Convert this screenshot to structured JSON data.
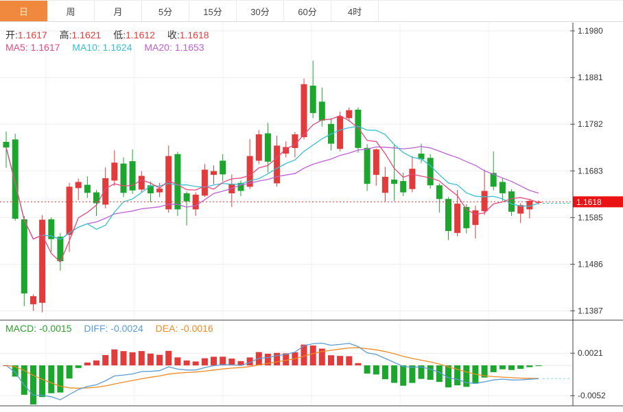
{
  "tabs": [
    {
      "label": "日",
      "active": true
    },
    {
      "label": "周",
      "active": false
    },
    {
      "label": "月",
      "active": false
    },
    {
      "label": "5分",
      "active": false
    },
    {
      "label": "15分",
      "active": false
    },
    {
      "label": "30分",
      "active": false
    },
    {
      "label": "60分",
      "active": false
    },
    {
      "label": "4时",
      "active": false
    }
  ],
  "main_legend": {
    "open_label": "开:",
    "open_value": "1.1617",
    "high_label": "高:",
    "high_value": "1.1621",
    "low_label": "低:",
    "low_value": "1.1612",
    "close_label": "收:",
    "close_value": "1.1618"
  },
  "ma_legend": {
    "ma5_label": "MA5:",
    "ma5_value": "1.1617",
    "ma10_label": "MA10:",
    "ma10_value": "1.1624",
    "ma20_label": "MA20:",
    "ma20_value": "1.1653"
  },
  "macd_legend": {
    "macd_label": "MACD:",
    "macd_value": "-0.0015",
    "diff_label": "DIFF:",
    "diff_value": "-0.0024",
    "dea_label": "DEA:",
    "dea_value": "-0.0016"
  },
  "colors": {
    "accent_orange": "#f0883d",
    "active_tab_text": "#ffeac6",
    "up_red": "#e23b3b",
    "down_green": "#1ca62e",
    "ma5_pink": "#e8487c",
    "ma10_cyan": "#35c0d2",
    "ma20_purple": "#bb60d5",
    "diff_blue": "#5b9bd5",
    "dea_orange": "#ee8a22",
    "macd_green": "#2ba12b",
    "price_line_red": "#f03030",
    "badge_red": "#ea1212",
    "label_dark": "#333333"
  },
  "chart_data": {
    "type": "candlestick",
    "title": "",
    "grid": true,
    "legend_position": "top-left",
    "price_axis": {
      "ticks": [
        "1.1980",
        "1.1881",
        "1.1782",
        "1.1683",
        "1.1585",
        "1.1486",
        "1.1387"
      ],
      "current": "1.1618"
    },
    "macd_axis": {
      "ticks": [
        "0.0021",
        "-0.0052"
      ]
    },
    "ma_periods": [
      5,
      10,
      20
    ],
    "macd_params": [
      12,
      26,
      9
    ],
    "candles": [
      [
        1.1745,
        1.1767,
        1.169,
        1.1733
      ],
      [
        1.175,
        1.1762,
        1.1578,
        1.1582
      ],
      [
        1.1581,
        1.1588,
        1.1397,
        1.1424
      ],
      [
        1.1401,
        1.1422,
        1.1387,
        1.1418
      ],
      [
        1.1404,
        1.159,
        1.1384,
        1.158
      ],
      [
        1.1581,
        1.1585,
        1.1512,
        1.1539
      ],
      [
        1.1544,
        1.1552,
        1.1472,
        1.1492
      ],
      [
        1.1548,
        1.1658,
        1.1512,
        1.165
      ],
      [
        1.1647,
        1.1667,
        1.1621,
        1.166
      ],
      [
        1.1654,
        1.1672,
        1.1626,
        1.1637
      ],
      [
        1.1638,
        1.1643,
        1.1588,
        1.1615
      ],
      [
        1.1612,
        1.1691,
        1.1604,
        1.1668
      ],
      [
        1.1663,
        1.1727,
        1.1652,
        1.1701
      ],
      [
        1.1699,
        1.1712,
        1.1628,
        1.1637
      ],
      [
        1.1704,
        1.1729,
        1.1635,
        1.1642
      ],
      [
        1.1644,
        1.1683,
        1.1638,
        1.1673
      ],
      [
        1.1653,
        1.1661,
        1.1617,
        1.1636
      ],
      [
        1.1638,
        1.1658,
        1.1628,
        1.1646
      ],
      [
        1.1602,
        1.1737,
        1.1595,
        1.1715
      ],
      [
        1.1719,
        1.1724,
        1.1588,
        1.1602
      ],
      [
        1.1636,
        1.164,
        1.1568,
        1.1619
      ],
      [
        1.1602,
        1.1638,
        1.1588,
        1.1633
      ],
      [
        1.1631,
        1.1698,
        1.1628,
        1.1686
      ],
      [
        1.1675,
        1.1695,
        1.1655,
        1.1683
      ],
      [
        1.1705,
        1.1719,
        1.1662,
        1.1676
      ],
      [
        1.1636,
        1.1676,
        1.1607,
        1.1655
      ],
      [
        1.1658,
        1.1663,
        1.163,
        1.1641
      ],
      [
        1.165,
        1.1751,
        1.1645,
        1.1715
      ],
      [
        1.1705,
        1.177,
        1.1698,
        1.1761
      ],
      [
        1.1763,
        1.1785,
        1.168,
        1.1703
      ],
      [
        1.1657,
        1.1758,
        1.165,
        1.1737
      ],
      [
        1.172,
        1.1746,
        1.1712,
        1.1734
      ],
      [
        1.1732,
        1.1766,
        1.1712,
        1.1761
      ],
      [
        1.1755,
        1.1879,
        1.175,
        1.1867
      ],
      [
        1.1864,
        1.1917,
        1.1795,
        1.1806
      ],
      [
        1.183,
        1.186,
        1.1777,
        1.179
      ],
      [
        1.1783,
        1.1795,
        1.1727,
        1.1741
      ],
      [
        1.173,
        1.1809,
        1.1725,
        1.1799
      ],
      [
        1.1795,
        1.1818,
        1.1788,
        1.1812
      ],
      [
        1.1813,
        1.1818,
        1.1722,
        1.1732
      ],
      [
        1.1732,
        1.174,
        1.1641,
        1.1656
      ],
      [
        1.1675,
        1.1731,
        1.1652,
        1.1729
      ],
      [
        1.1637,
        1.1692,
        1.1618,
        1.1671
      ],
      [
        1.1665,
        1.1738,
        1.162,
        1.1656
      ],
      [
        1.1662,
        1.168,
        1.163,
        1.1638
      ],
      [
        1.1645,
        1.1715,
        1.1638,
        1.1688
      ],
      [
        1.172,
        1.1741,
        1.17,
        1.1708
      ],
      [
        1.1711,
        1.1719,
        1.1646,
        1.1653
      ],
      [
        1.1653,
        1.1657,
        1.1595,
        1.1624
      ],
      [
        1.1624,
        1.1628,
        1.1537,
        1.1556
      ],
      [
        1.1552,
        1.1643,
        1.1545,
        1.1614
      ],
      [
        1.1607,
        1.1613,
        1.1551,
        1.1562
      ],
      [
        1.1569,
        1.161,
        1.154,
        1.16
      ],
      [
        1.1598,
        1.1686,
        1.159,
        1.1641
      ],
      [
        1.1679,
        1.1725,
        1.1642,
        1.165
      ],
      [
        1.166,
        1.1668,
        1.162,
        1.1636
      ],
      [
        1.164,
        1.1645,
        1.1588,
        1.1597
      ],
      [
        1.1593,
        1.1615,
        1.1573,
        1.1611
      ],
      [
        1.1602,
        1.1624,
        1.1583,
        1.162
      ],
      [
        1.1617,
        1.1621,
        1.1612,
        1.1618
      ]
    ]
  }
}
